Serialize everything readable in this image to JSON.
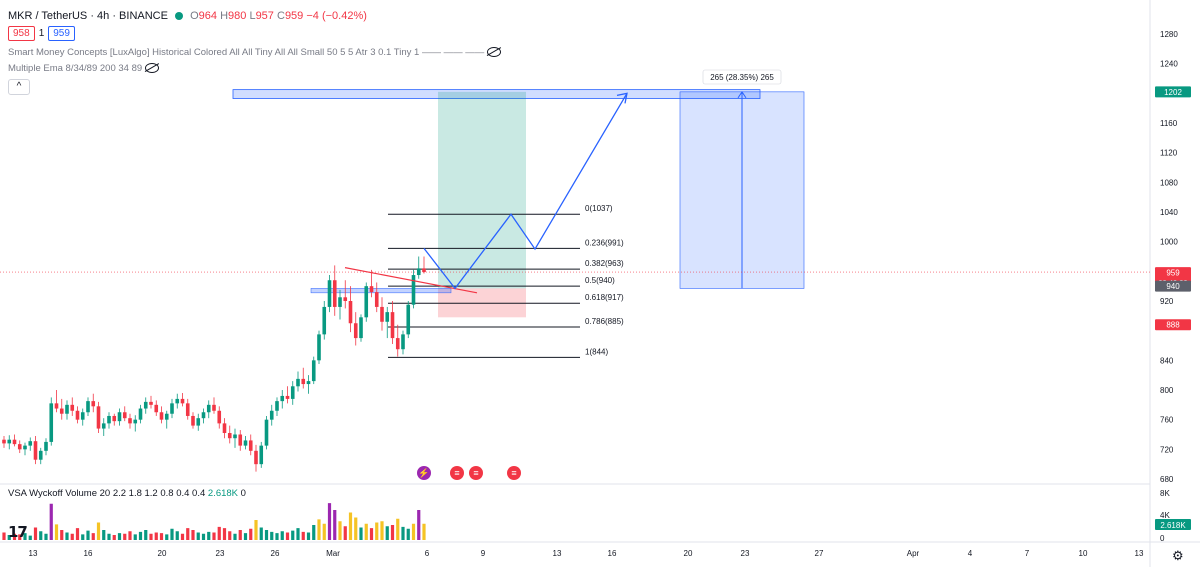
{
  "header": {
    "symbol": "MKR / TetherUS · 4h · BINANCE",
    "open_label": "O",
    "open": "964",
    "high_label": "H",
    "high": "980",
    "low_label": "L",
    "low": "957",
    "close_label": "C",
    "close": "959",
    "change": "−4 (−0.42%)",
    "sell_price": "958",
    "spread": "1",
    "buy_price": "959"
  },
  "indicators": {
    "smc": "Smart Money Concepts [LuxAlgo] Historical Colored All All Tiny All All Small 50 5 5 Atr 3 0.1 Tiny 1 —— —— ——",
    "ema": "Multiple Ema 8/34/89 200 34 89",
    "collapse_icon": "^"
  },
  "volume_legend": {
    "label": "VSA Wyckoff Volume 20 2.2 1.8 1.2 0.8 0.4 0.4",
    "value": "2.618K",
    "extra": "0"
  },
  "logo": "17",
  "colors": {
    "up": "#089981",
    "down": "#f23645",
    "accent": "#2962ff",
    "price_line": "#f23645",
    "last_price_badge": "#f23645",
    "target_badge": "#089981"
  },
  "chart_data": {
    "type": "candlestick",
    "price_axis": {
      "ticks": [
        1280,
        1240,
        1202,
        1160,
        1120,
        1080,
        1040,
        1000,
        959,
        940,
        920,
        888,
        840,
        800,
        760,
        720,
        680
      ],
      "labels": [
        "1280",
        "1240",
        "1202",
        "1160",
        "1120",
        "1080",
        "1040",
        "1000",
        "959",
        "940",
        "920",
        "888",
        "840",
        "800",
        "760",
        "720",
        "680"
      ],
      "ylim": [
        672,
        1296
      ]
    },
    "badges": [
      {
        "value": 1202,
        "text": "1202",
        "color": "#089981"
      },
      {
        "value": 959,
        "text": "959",
        "sub": "02:40:22",
        "color": "#f23645"
      },
      {
        "value": 940,
        "text": "940",
        "color": "#5d606b"
      },
      {
        "value": 888,
        "text": "888",
        "color": "#f23645"
      }
    ],
    "time_axis": {
      "labels": [
        "13",
        "16",
        "20",
        "23",
        "26",
        "Mar",
        "6",
        "9",
        "13",
        "16",
        "20",
        "23",
        "27",
        "Apr",
        "4",
        "7",
        "10",
        "13"
      ]
    },
    "fibonacci": [
      {
        "level": "0",
        "price": 1037,
        "label": "0(1037)"
      },
      {
        "level": "0.236",
        "price": 991,
        "label": "0.236(991)"
      },
      {
        "level": "0.382",
        "price": 963,
        "label": "0.382(963)"
      },
      {
        "level": "0.5",
        "price": 940,
        "label": "0.5(940)"
      },
      {
        "level": "0.618",
        "price": 917,
        "label": "0.618(917)"
      },
      {
        "level": "0.786",
        "price": 885,
        "label": "0.786(885)"
      },
      {
        "level": "1",
        "price": 844,
        "label": "1(844)"
      }
    ],
    "measure": {
      "label": "265 (28.35%) 265",
      "from": 937,
      "to": 1202
    },
    "position": {
      "entry": 937,
      "target": 1202,
      "stop": 898
    },
    "target_zone": {
      "top": 1205,
      "bottom": 1193
    },
    "ob_zone": {
      "top": 937,
      "bottom": 931
    },
    "projected_path": [
      937,
      1037,
      990,
      1200
    ],
    "volume_axis": {
      "ticks": [
        "8K",
        "4K",
        "0"
      ],
      "last": "2.618K"
    },
    "candles_ohlc": [
      [
        733,
        738,
        722,
        728
      ],
      [
        728,
        739,
        720,
        733
      ],
      [
        733,
        740,
        724,
        727
      ],
      [
        727,
        732,
        715,
        720
      ],
      [
        720,
        729,
        712,
        725
      ],
      [
        725,
        736,
        718,
        731
      ],
      [
        731,
        738,
        700,
        706
      ],
      [
        706,
        722,
        700,
        718
      ],
      [
        718,
        735,
        712,
        730
      ],
      [
        730,
        790,
        725,
        782
      ],
      [
        782,
        800,
        770,
        775
      ],
      [
        775,
        788,
        760,
        768
      ],
      [
        768,
        786,
        760,
        780
      ],
      [
        780,
        790,
        765,
        772
      ],
      [
        772,
        778,
        755,
        760
      ],
      [
        760,
        775,
        752,
        770
      ],
      [
        770,
        790,
        765,
        785
      ],
      [
        785,
        795,
        770,
        778
      ],
      [
        778,
        784,
        742,
        748
      ],
      [
        748,
        762,
        738,
        755
      ],
      [
        755,
        770,
        748,
        765
      ],
      [
        765,
        768,
        752,
        758
      ],
      [
        758,
        775,
        752,
        770
      ],
      [
        770,
        778,
        758,
        762
      ],
      [
        762,
        768,
        748,
        755
      ],
      [
        755,
        766,
        744,
        760
      ],
      [
        760,
        780,
        755,
        775
      ],
      [
        775,
        790,
        768,
        784
      ],
      [
        784,
        792,
        775,
        780
      ],
      [
        780,
        786,
        765,
        770
      ],
      [
        770,
        778,
        755,
        760
      ],
      [
        760,
        772,
        748,
        768
      ],
      [
        768,
        788,
        762,
        782
      ],
      [
        782,
        795,
        775,
        788
      ],
      [
        788,
        796,
        778,
        782
      ],
      [
        782,
        788,
        760,
        765
      ],
      [
        765,
        770,
        748,
        752
      ],
      [
        752,
        768,
        745,
        762
      ],
      [
        762,
        775,
        755,
        770
      ],
      [
        770,
        786,
        762,
        780
      ],
      [
        780,
        790,
        768,
        772
      ],
      [
        772,
        778,
        748,
        755
      ],
      [
        755,
        762,
        735,
        742
      ],
      [
        742,
        752,
        728,
        735
      ],
      [
        735,
        748,
        722,
        740
      ],
      [
        740,
        746,
        718,
        725
      ],
      [
        725,
        738,
        720,
        732
      ],
      [
        732,
        740,
        712,
        718
      ],
      [
        718,
        726,
        690,
        700
      ],
      [
        700,
        730,
        695,
        725
      ],
      [
        725,
        765,
        720,
        760
      ],
      [
        760,
        780,
        752,
        772
      ],
      [
        772,
        790,
        765,
        785
      ],
      [
        785,
        800,
        775,
        792
      ],
      [
        792,
        805,
        782,
        788
      ],
      [
        788,
        812,
        780,
        805
      ],
      [
        805,
        825,
        798,
        815
      ],
      [
        815,
        830,
        802,
        808
      ],
      [
        808,
        820,
        795,
        812
      ],
      [
        812,
        845,
        808,
        840
      ],
      [
        840,
        880,
        835,
        875
      ],
      [
        875,
        920,
        868,
        912
      ],
      [
        912,
        955,
        905,
        948
      ],
      [
        948,
        968,
        900,
        912
      ],
      [
        912,
        935,
        895,
        925
      ],
      [
        925,
        948,
        910,
        920
      ],
      [
        920,
        940,
        878,
        890
      ],
      [
        890,
        905,
        860,
        870
      ],
      [
        870,
        902,
        865,
        898
      ],
      [
        898,
        945,
        892,
        940
      ],
      [
        940,
        962,
        925,
        932
      ],
      [
        932,
        945,
        905,
        912
      ],
      [
        912,
        925,
        880,
        892
      ],
      [
        892,
        912,
        870,
        905
      ],
      [
        905,
        920,
        862,
        870
      ],
      [
        870,
        888,
        845,
        855
      ],
      [
        855,
        880,
        848,
        875
      ],
      [
        875,
        920,
        870,
        915
      ],
      [
        915,
        962,
        910,
        955
      ],
      [
        955,
        980,
        950,
        964
      ],
      [
        964,
        980,
        957,
        959
      ]
    ],
    "volumes": [
      1.2,
      0.8,
      1.0,
      0.9,
      1.1,
      0.7,
      2.0,
      1.4,
      1.0,
      5.8,
      2.5,
      1.6,
      1.2,
      1.0,
      1.9,
      0.9,
      1.5,
      1.1,
      2.8,
      1.6,
      1.0,
      0.8,
      1.1,
      1.0,
      1.4,
      0.9,
      1.3,
      1.6,
      1.0,
      1.2,
      1.1,
      0.9,
      1.8,
      1.4,
      1.0,
      1.9,
      1.6,
      1.2,
      1.0,
      1.3,
      1.2,
      2.1,
      1.9,
      1.4,
      1.0,
      1.6,
      1.1,
      1.8,
      3.2,
      2.0,
      1.6,
      1.3,
      1.1,
      1.4,
      1.2,
      1.5,
      1.9,
      1.3,
      1.2,
      2.4,
      3.3,
      2.6,
      5.9,
      4.8,
      3.0,
      2.2,
      4.4,
      3.6,
      2.0,
      2.6,
      1.9,
      2.8,
      3.0,
      2.2,
      2.4,
      3.4,
      2.1,
      1.8,
      2.6,
      4.8,
      2.6
    ]
  }
}
